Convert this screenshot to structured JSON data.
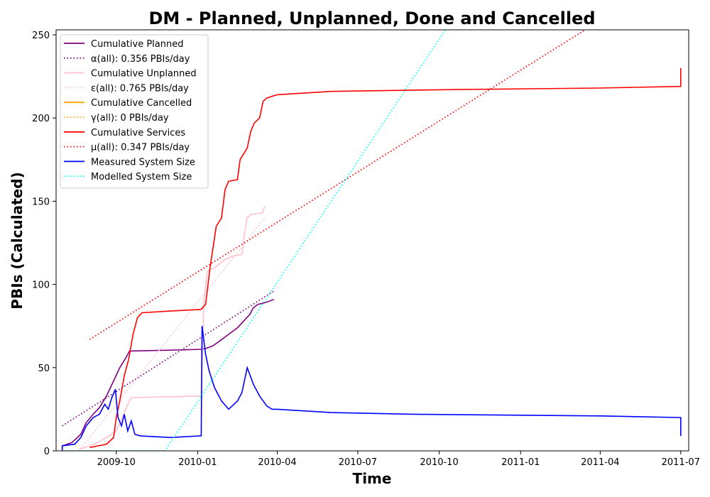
{
  "chart_data": {
    "type": "line",
    "title": "DM - Planned, Unplanned, Done  and Cancelled",
    "xlabel": "Time",
    "ylabel": "PBIs (Calculated)",
    "xlim": [
      "2009-07-25",
      "2011-07-10"
    ],
    "ylim": [
      0,
      253
    ],
    "x_ticks": [
      "2009-10",
      "2010-01",
      "2010-04",
      "2010-07",
      "2010-10",
      "2011-01",
      "2011-04",
      "2011-07"
    ],
    "y_ticks": [
      0,
      50,
      100,
      150,
      200,
      250
    ],
    "grid": false,
    "legend_position": "upper-left",
    "series": [
      {
        "name": "Cumulative Planned",
        "color": "#800080",
        "style": "solid",
        "points": [
          [
            "2009-08-01",
            3
          ],
          [
            "2009-08-12",
            5
          ],
          [
            "2009-08-22",
            10
          ],
          [
            "2009-08-28",
            17
          ],
          [
            "2009-09-05",
            22
          ],
          [
            "2009-09-12",
            26
          ],
          [
            "2009-09-20",
            33
          ],
          [
            "2009-09-28",
            42
          ],
          [
            "2009-10-05",
            50
          ],
          [
            "2009-10-12",
            56
          ],
          [
            "2009-10-16",
            60
          ],
          [
            "2009-11-30",
            60.5
          ],
          [
            "2010-01-05",
            61
          ],
          [
            "2010-01-10",
            61.5
          ],
          [
            "2010-01-18",
            63
          ],
          [
            "2010-01-26",
            66
          ],
          [
            "2010-02-05",
            70
          ],
          [
            "2010-02-15",
            74
          ],
          [
            "2010-02-22",
            78
          ],
          [
            "2010-03-01",
            82
          ],
          [
            "2010-03-05",
            86
          ],
          [
            "2010-03-10",
            88
          ],
          [
            "2010-03-18",
            89
          ],
          [
            "2010-03-28",
            91
          ]
        ]
      },
      {
        "name": "α(all): 0.356 PBIs/day",
        "color": "#800080",
        "style": "dotted",
        "points": [
          [
            "2009-08-01",
            15
          ],
          [
            "2010-03-28",
            96
          ]
        ]
      },
      {
        "name": "Cumulative Unplanned",
        "color": "#FFC0CB",
        "style": "solid",
        "points": [
          [
            "2009-08-20",
            1
          ],
          [
            "2009-09-01",
            3
          ],
          [
            "2009-09-10",
            5
          ],
          [
            "2009-09-20",
            8
          ],
          [
            "2009-10-01",
            12
          ],
          [
            "2009-10-08",
            20
          ],
          [
            "2009-10-14",
            28
          ],
          [
            "2009-10-18",
            32
          ],
          [
            "2009-12-01",
            32.5
          ],
          [
            "2010-01-05",
            33
          ],
          [
            "2010-01-08",
            90
          ],
          [
            "2010-01-12",
            108
          ],
          [
            "2010-01-20",
            110
          ],
          [
            "2010-02-01",
            115
          ],
          [
            "2010-02-10",
            117
          ],
          [
            "2010-02-20",
            118
          ],
          [
            "2010-02-23",
            130
          ],
          [
            "2010-02-26",
            140
          ],
          [
            "2010-03-02",
            142
          ],
          [
            "2010-03-15",
            143
          ],
          [
            "2010-03-18",
            147
          ]
        ]
      },
      {
        "name": "ε(all): 0.765 PBIs/day",
        "color": "#FFC0CB",
        "style": "dotted",
        "points": [
          [
            "2009-08-20",
            0
          ],
          [
            "2010-03-18",
            140
          ]
        ]
      },
      {
        "name": "Cumulative Cancelled",
        "color": "#FFA500",
        "style": "solid",
        "points": []
      },
      {
        "name": "γ(all): 0 PBIs/day",
        "color": "#FFA500",
        "style": "dotted",
        "points": []
      },
      {
        "name": "Cumulative Services",
        "color": "#FF0000",
        "style": "solid",
        "points": [
          [
            "2009-09-01",
            2
          ],
          [
            "2009-09-20",
            4
          ],
          [
            "2009-09-28",
            8
          ],
          [
            "2009-10-01",
            20
          ],
          [
            "2009-10-05",
            30
          ],
          [
            "2009-10-10",
            45
          ],
          [
            "2009-10-15",
            55
          ],
          [
            "2009-10-20",
            70
          ],
          [
            "2009-10-25",
            80
          ],
          [
            "2009-10-30",
            83
          ],
          [
            "2009-12-01",
            84
          ],
          [
            "2010-01-05",
            85
          ],
          [
            "2010-01-10",
            88
          ],
          [
            "2010-01-15",
            110
          ],
          [
            "2010-01-22",
            135
          ],
          [
            "2010-01-28",
            140
          ],
          [
            "2010-02-01",
            157
          ],
          [
            "2010-02-05",
            162
          ],
          [
            "2010-02-15",
            163
          ],
          [
            "2010-02-18",
            175
          ],
          [
            "2010-02-26",
            182
          ],
          [
            "2010-03-02",
            192
          ],
          [
            "2010-03-06",
            197
          ],
          [
            "2010-03-12",
            200
          ],
          [
            "2010-03-16",
            210
          ],
          [
            "2010-03-20",
            212
          ],
          [
            "2010-04-01",
            214
          ],
          [
            "2010-06-01",
            216
          ],
          [
            "2010-10-01",
            217
          ],
          [
            "2011-04-01",
            218
          ],
          [
            "2011-07-01",
            219
          ],
          [
            "2011-07-01",
            230
          ]
        ]
      },
      {
        "name": "μ(all): 0.347 PBIs/day",
        "color": "#FF0000",
        "style": "dotted",
        "points": [
          [
            "2009-09-01",
            67
          ],
          [
            "2011-03-15",
            253
          ]
        ]
      },
      {
        "name": "Measured System Size",
        "color": "#0000FF",
        "style": "solid",
        "points": [
          [
            "2009-08-01",
            0
          ],
          [
            "2009-08-01",
            3
          ],
          [
            "2009-08-15",
            4
          ],
          [
            "2009-08-22",
            8
          ],
          [
            "2009-08-28",
            15
          ],
          [
            "2009-09-05",
            20
          ],
          [
            "2009-09-12",
            22
          ],
          [
            "2009-09-18",
            28
          ],
          [
            "2009-09-22",
            25
          ],
          [
            "2009-09-26",
            32
          ],
          [
            "2009-09-30",
            37
          ],
          [
            "2009-10-03",
            20
          ],
          [
            "2009-10-07",
            15
          ],
          [
            "2009-10-10",
            22
          ],
          [
            "2009-10-14",
            12
          ],
          [
            "2009-10-18",
            18
          ],
          [
            "2009-10-22",
            10
          ],
          [
            "2009-10-28",
            9
          ],
          [
            "2009-12-01",
            8
          ],
          [
            "2010-01-05",
            9
          ],
          [
            "2010-01-06",
            75
          ],
          [
            "2010-01-10",
            58
          ],
          [
            "2010-01-14",
            48
          ],
          [
            "2010-01-20",
            38
          ],
          [
            "2010-01-28",
            30
          ],
          [
            "2010-02-05",
            25
          ],
          [
            "2010-02-15",
            30
          ],
          [
            "2010-02-20",
            35
          ],
          [
            "2010-02-26",
            50
          ],
          [
            "2010-03-05",
            40
          ],
          [
            "2010-03-12",
            33
          ],
          [
            "2010-03-20",
            27
          ],
          [
            "2010-03-26",
            25
          ],
          [
            "2010-04-01",
            25
          ],
          [
            "2010-06-01",
            23
          ],
          [
            "2010-09-01",
            22
          ],
          [
            "2011-04-01",
            21
          ],
          [
            "2011-07-01",
            20
          ],
          [
            "2011-07-01",
            9
          ]
        ]
      },
      {
        "name": "Modelled System Size",
        "color": "#00FFFF",
        "style": "dotted",
        "points": [
          [
            "2009-08-01",
            0
          ],
          [
            "2009-11-25",
            0
          ],
          [
            "2010-10-08",
            253
          ]
        ]
      }
    ]
  }
}
